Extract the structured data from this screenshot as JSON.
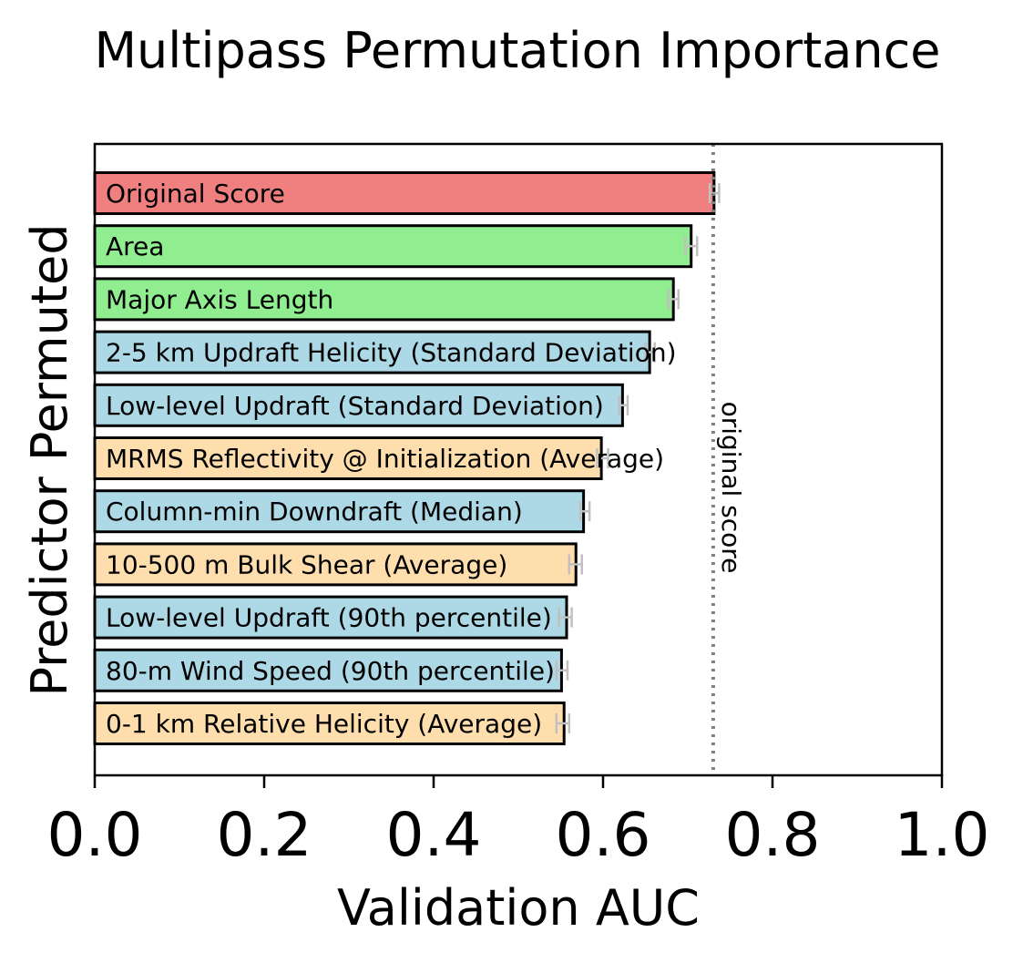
{
  "chart_data": {
    "type": "bar",
    "orientation": "horizontal",
    "title": "Multipass Permutation Importance",
    "xlabel": "Validation AUC",
    "ylabel": "Predictor Permuted",
    "xlim": [
      0.0,
      1.0
    ],
    "xticks": [
      "0.0",
      "0.2",
      "0.4",
      "0.6",
      "0.8",
      "1.0"
    ],
    "reference_line": {
      "value": 0.73,
      "label": "original score",
      "style": "dotted"
    },
    "grid": false,
    "bars": [
      {
        "label": "Original Score",
        "value": 0.731,
        "error": [
          0.726,
          0.737
        ],
        "color": "#f08080"
      },
      {
        "label": "Area",
        "value": 0.704,
        "error": [
          0.697,
          0.711
        ],
        "color": "#90ee90"
      },
      {
        "label": "Major Axis Length",
        "value": 0.683,
        "error": [
          0.677,
          0.689
        ],
        "color": "#90ee90"
      },
      {
        "label": "2-5 km Updraft Helicity (Standard Deviation)",
        "value": 0.655,
        "error": [
          0.65,
          0.661
        ],
        "color": "#add8e6"
      },
      {
        "label": "Low-level Updraft (Standard Deviation)",
        "value": 0.623,
        "error": [
          0.619,
          0.629
        ],
        "color": "#add8e6"
      },
      {
        "label": "MRMS Reflectivity @ Initialization (Average)",
        "value": 0.598,
        "error": [
          0.593,
          0.606
        ],
        "color": "#ffdead"
      },
      {
        "label": "Column-min Downdraft (Median)",
        "value": 0.577,
        "error": [
          0.573,
          0.584
        ],
        "color": "#add8e6"
      },
      {
        "label": "10-500 m Bulk Shear (Average)",
        "value": 0.568,
        "error": [
          0.56,
          0.575
        ],
        "color": "#ffdead"
      },
      {
        "label": "Low-level Updraft (90th percentile)",
        "value": 0.557,
        "error": [
          0.548,
          0.563
        ],
        "color": "#add8e6"
      },
      {
        "label": "80-m Wind Speed (90th percentile)",
        "value": 0.551,
        "error": [
          0.545,
          0.558
        ],
        "color": "#add8e6"
      },
      {
        "label": "0-1 km Relative Helicity (Average)",
        "value": 0.554,
        "error": [
          0.545,
          0.56
        ],
        "color": "#ffdead"
      }
    ]
  }
}
